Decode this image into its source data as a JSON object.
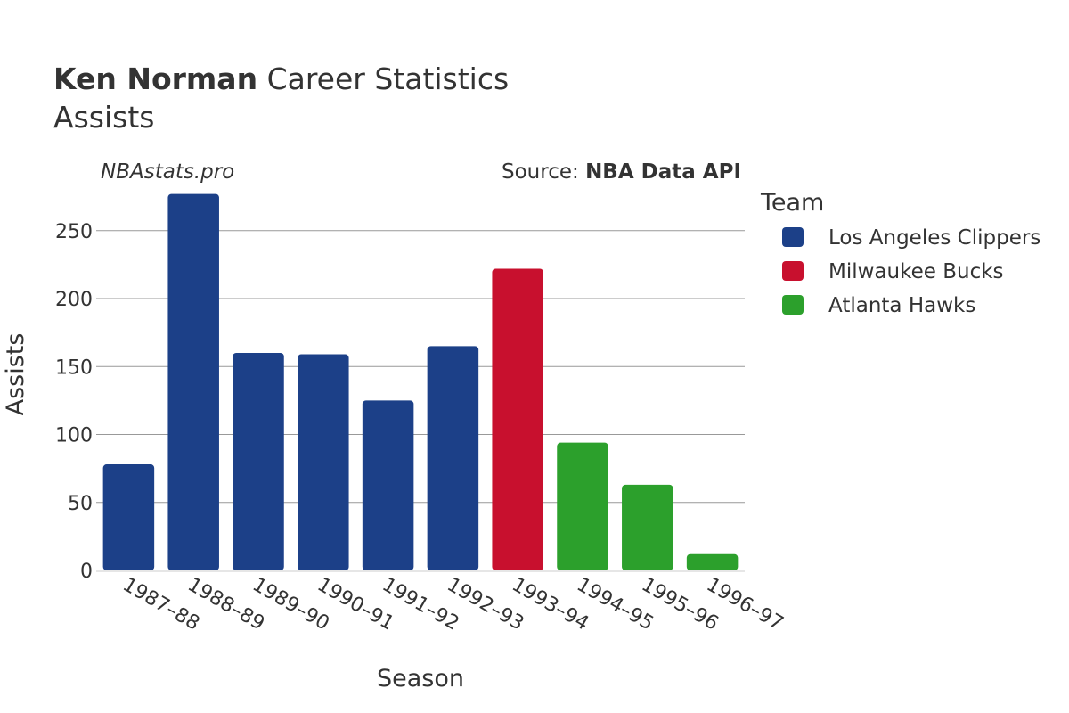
{
  "header": {
    "player_name": "Ken Norman",
    "title_suffix": " Career Statistics",
    "subtitle": "Assists",
    "watermark": "NBAstats.pro",
    "source_prefix": "Source: ",
    "source_name": "NBA Data API"
  },
  "legend": {
    "title": "Team"
  },
  "chart_data": {
    "type": "bar",
    "xlabel": "Season",
    "ylabel": "Assists",
    "ylim": [
      0,
      280
    ],
    "yticks": [
      0,
      50,
      100,
      150,
      200,
      250
    ],
    "grid": true,
    "legend_placement": "right",
    "categories": [
      "1987–88",
      "1988–89",
      "1989–90",
      "1990–91",
      "1991–92",
      "1992–93",
      "1993–94",
      "1994–95",
      "1995–96",
      "1996–97"
    ],
    "values": [
      78,
      277,
      160,
      159,
      125,
      165,
      222,
      94,
      63,
      12
    ],
    "teams": [
      "Los Angeles Clippers",
      "Los Angeles Clippers",
      "Los Angeles Clippers",
      "Los Angeles Clippers",
      "Los Angeles Clippers",
      "Los Angeles Clippers",
      "Milwaukee Bucks",
      "Atlanta Hawks",
      "Atlanta Hawks",
      "Atlanta Hawks"
    ],
    "series": [
      {
        "name": "Los Angeles Clippers",
        "color": "#1c4088"
      },
      {
        "name": "Milwaukee Bucks",
        "color": "#c8102e"
      },
      {
        "name": "Atlanta Hawks",
        "color": "#2ca02c"
      }
    ]
  }
}
